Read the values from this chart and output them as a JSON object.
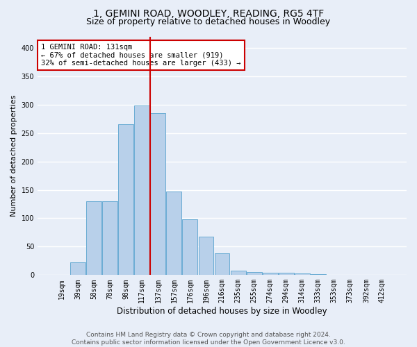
{
  "title": "1, GEMINI ROAD, WOODLEY, READING, RG5 4TF",
  "subtitle": "Size of property relative to detached houses in Woodley",
  "xlabel": "Distribution of detached houses by size in Woodley",
  "ylabel": "Number of detached properties",
  "bar_labels": [
    "19sqm",
    "39sqm",
    "58sqm",
    "78sqm",
    "98sqm",
    "117sqm",
    "137sqm",
    "157sqm",
    "176sqm",
    "196sqm",
    "216sqm",
    "235sqm",
    "255sqm",
    "274sqm",
    "294sqm",
    "314sqm",
    "333sqm",
    "353sqm",
    "373sqm",
    "392sqm",
    "412sqm"
  ],
  "bar_heights": [
    1,
    23,
    130,
    130,
    265,
    298,
    285,
    147,
    98,
    67,
    38,
    8,
    5,
    4,
    4,
    3,
    2,
    1,
    1,
    0,
    1
  ],
  "bar_color": "#b8d0ea",
  "bar_edge_color": "#6aacd4",
  "vline_color": "#cc0000",
  "annotation_text": "1 GEMINI ROAD: 131sqm\n← 67% of detached houses are smaller (919)\n32% of semi-detached houses are larger (433) →",
  "annotation_box_color": "#ffffff",
  "annotation_box_edge_color": "#cc0000",
  "ylim": [
    0,
    420
  ],
  "yticks": [
    0,
    50,
    100,
    150,
    200,
    250,
    300,
    350,
    400
  ],
  "background_color": "#e8eef8",
  "plot_background_color": "#e8eef8",
  "grid_color": "#ffffff",
  "footer_line1": "Contains HM Land Registry data © Crown copyright and database right 2024.",
  "footer_line2": "Contains public sector information licensed under the Open Government Licence v3.0.",
  "title_fontsize": 10,
  "subtitle_fontsize": 9,
  "xlabel_fontsize": 8.5,
  "ylabel_fontsize": 8,
  "tick_fontsize": 7,
  "annotation_fontsize": 7.5,
  "footer_fontsize": 6.5,
  "vline_x_index": 6
}
